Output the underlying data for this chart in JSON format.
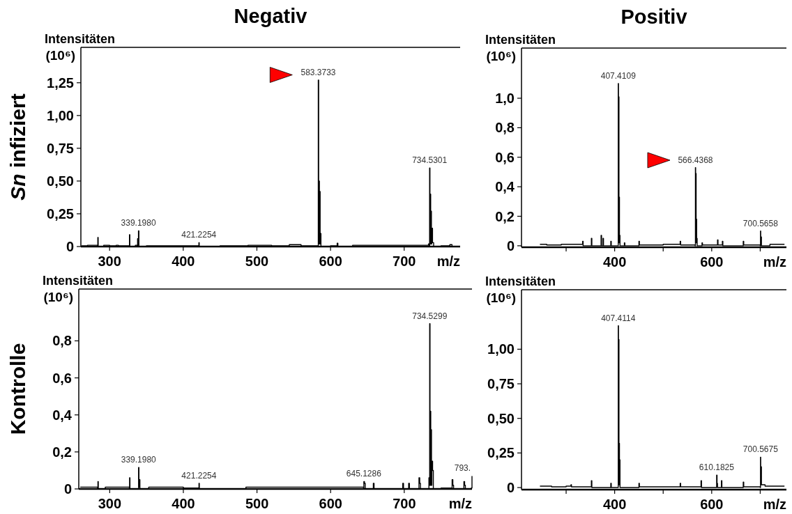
{
  "chart_data": [
    {
      "type": "step",
      "title": "Negativ",
      "xlabel": "m/z",
      "ylabel": "Intensitäten (10⁶)",
      "xlim": [
        261,
        776
      ],
      "xticks": [
        300,
        400,
        500,
        600,
        700
      ],
      "ylim": [
        0,
        1.52
      ],
      "yticks": [
        {
          "value": 0,
          "label": "0"
        },
        {
          "value": 0.25,
          "label": "0,25"
        },
        {
          "value": 0.5,
          "label": "0,50"
        },
        {
          "value": 0.75,
          "label": "0,75"
        },
        {
          "value": 1,
          "label": "1,00"
        },
        {
          "value": 1.25,
          "label": "1,25"
        }
      ],
      "annotations": [
        "Sn infiziert",
        {
          "text": "583.3733",
          "x": 583.37,
          "y": 1.27
        },
        {
          "text": "734.5301",
          "x": 734.53,
          "y": 0.6
        },
        {
          "text": "339.1980",
          "x": 339.2,
          "y": 0.12
        },
        {
          "text": "421.2254",
          "x": 421.23,
          "y": 0.03
        }
      ],
      "series": [
        {
          "color": "#000000",
          "x": [
            262,
            270,
            283.6,
            284,
            284.5,
            292,
            300,
            309,
            312,
            326.7,
            327,
            327.5,
            335,
            337.5,
            338,
            338.5,
            339.2,
            339.8,
            350,
            380,
            420.8,
            421.23,
            421.7,
            450,
            488,
            520,
            544,
            560,
            582.9,
            583.37,
            583.9,
            584.37,
            584.9,
            585.37,
            585.9,
            586.4,
            587,
            600,
            609,
            610,
            630,
            660,
            700,
            719,
            733,
            734,
            734.53,
            735,
            735.5,
            736,
            736.5,
            737,
            737.5,
            738.5,
            740,
            750,
            762,
            765
          ],
          "values": [
            0.005,
            0.01,
            0,
            0.07,
            0,
            0.01,
            0.005,
            0.01,
            0.005,
            0,
            0.09,
            0,
            0.01,
            0,
            0.06,
            0.01,
            0.12,
            0,
            0.005,
            0.005,
            0,
            0.03,
            0,
            0.005,
            0.01,
            0.005,
            0.015,
            0.005,
            0,
            1.27,
            0.02,
            0.5,
            0.02,
            0.42,
            0.02,
            0.1,
            0,
            0.005,
            0.025,
            0,
            0.01,
            0.01,
            0.01,
            0.01,
            0.02,
            0,
            0.6,
            0.02,
            0.4,
            0.02,
            0.27,
            0.02,
            0.14,
            0.03,
            0,
            0.005,
            0.015,
            0.005
          ]
        },
        {
          "type": "scatter",
          "marker": "triangle",
          "color": "#ff0000",
          "x": [
            533
          ],
          "values": [
            1.31
          ]
        }
      ]
    },
    {
      "type": "step",
      "title": "Positiv",
      "xlabel": "m/z",
      "ylabel": "Intensitäten (10⁶)",
      "xlim": [
        208,
        754
      ],
      "xticks": [
        {
          "value": 300,
          "label": null
        },
        400,
        {
          "value": 500,
          "label": null
        },
        600,
        {
          "value": 700,
          "label": null
        }
      ],
      "ylim": [
        -0.01,
        1.34
      ],
      "yticks": [
        {
          "value": 0,
          "label": "0"
        },
        {
          "value": 0.2,
          "label": "0,2"
        },
        {
          "value": 0.4,
          "label": "0,4"
        },
        {
          "value": 0.6,
          "label": "0,6"
        },
        {
          "value": 0.8,
          "label": "0,8"
        },
        {
          "value": 1,
          "label": "1,0"
        }
      ],
      "annotations": [
        {
          "text": "407.4109",
          "x": 407.41,
          "y": 1.1
        },
        {
          "text": "566.4368",
          "x": 566.44,
          "y": 0.53
        },
        {
          "text": "700.5658",
          "x": 700.57,
          "y": 0.1
        }
      ],
      "series": [
        {
          "color": "#000000",
          "x": [
            246,
            260,
            290,
            310,
            334,
            335,
            352,
            353,
            372,
            373,
            376,
            377,
            392,
            393,
            406.9,
            407.41,
            407.9,
            408.41,
            408.9,
            409.41,
            409.9,
            410.4,
            411,
            420,
            421,
            450,
            451,
            500,
            535,
            536,
            565.9,
            566.44,
            566.9,
            567.44,
            567.9,
            568.4,
            569,
            570,
            580,
            581,
            612,
            613,
            622,
            623,
            665,
            666,
            700.1,
            700.57,
            701,
            701.6,
            702.5,
            720,
            750
          ],
          "values": [
            0.01,
            0.005,
            0.01,
            0.01,
            0.03,
            0,
            0.05,
            0,
            0.07,
            0,
            0.05,
            0,
            0.03,
            0,
            0,
            1.1,
            0.02,
            1.01,
            0.02,
            0.33,
            0.02,
            0.07,
            0,
            0.02,
            0,
            0.03,
            0.005,
            0.01,
            0.03,
            0.005,
            0,
            0.53,
            0.02,
            0.49,
            0.02,
            0.18,
            0.05,
            0,
            0.02,
            0.005,
            0.04,
            0.005,
            0.03,
            0,
            0.03,
            0.005,
            0,
            0.1,
            0.02,
            0.06,
            0,
            0.01,
            0.01
          ]
        },
        {
          "type": "scatter",
          "marker": "triangle",
          "color": "#ff0000",
          "x": [
            491
          ],
          "values": [
            0.58
          ]
        }
      ]
    },
    {
      "type": "step",
      "xlabel": "m/z",
      "ylabel": "Intensitäten (10⁶)",
      "xlim": [
        258,
        792
      ],
      "xticks": [
        300,
        400,
        500,
        600,
        700
      ],
      "ylim": [
        0,
        1.08
      ],
      "yticks": [
        {
          "value": 0,
          "label": "0"
        },
        {
          "value": 0.2,
          "label": "0,2"
        },
        {
          "value": 0.4,
          "label": "0,4"
        },
        {
          "value": 0.6,
          "label": "0,6"
        },
        {
          "value": 0.8,
          "label": "0,8"
        }
      ],
      "annotations": [
        "Kontrolle",
        {
          "text": "734.5299",
          "x": 734.53,
          "y": 0.893
        },
        {
          "text": "339.1980",
          "x": 339.2,
          "y": 0.116
        },
        {
          "text": "421.2254",
          "x": 421.23,
          "y": 0.03
        },
        {
          "text": "645.1286",
          "x": 645.13,
          "y": 0.04
        },
        {
          "text": "793.",
          "x": 792,
          "y": 0.07
        }
      ],
      "series": [
        {
          "color": "#000000",
          "x": [
            260,
            283.6,
            284,
            284.5,
            294,
            310,
            326.7,
            327,
            327.5,
            338.7,
            339.2,
            339.7,
            340.2,
            341,
            353,
            400,
            420.8,
            421.23,
            421.7,
            485,
            543,
            575,
            644.7,
            645.13,
            646,
            647,
            658,
            659,
            698,
            699,
            706,
            707,
            720,
            721,
            722,
            733.5,
            734,
            734.53,
            735,
            735.5,
            736,
            736.5,
            737,
            737.5,
            738.5,
            739.5,
            750,
            764.5,
            765,
            766,
            767,
            780.5,
            781,
            782,
            783,
            791,
            792
          ],
          "values": [
            0.01,
            0,
            0.04,
            0,
            0.01,
            0.01,
            0,
            0.06,
            0,
            0,
            0.116,
            0.01,
            0.05,
            0,
            0.01,
            0.005,
            0,
            0.03,
            0,
            0.01,
            0.01,
            0.01,
            0,
            0.04,
            0.03,
            0,
            0.03,
            0,
            0.03,
            0,
            0.03,
            0,
            0.06,
            0.03,
            0,
            0.06,
            0.02,
            0.893,
            0.02,
            0.42,
            0.02,
            0.32,
            0.02,
            0.15,
            0.1,
            0,
            0.005,
            0,
            0.05,
            0.02,
            0,
            0,
            0.04,
            0.02,
            0,
            0.005,
            0.07
          ]
        }
      ]
    },
    {
      "type": "step",
      "xlabel": "m/z",
      "ylabel": "Intensitäten (10⁶)",
      "xlim": [
        208,
        754
      ],
      "xticks": [
        {
          "value": 300,
          "label": null
        },
        400,
        {
          "value": 500,
          "label": null
        },
        600,
        {
          "value": 700,
          "label": null
        }
      ],
      "ylim": [
        -0.015,
        1.43
      ],
      "yticks": [
        {
          "value": 0,
          "label": "0"
        },
        {
          "value": 0.25,
          "label": "0,25"
        },
        {
          "value": 0.5,
          "label": "0,50"
        },
        {
          "value": 0.75,
          "label": "0,75"
        },
        {
          "value": 1,
          "label": "1,00"
        }
      ],
      "annotations": [
        {
          "text": "407.4114",
          "x": 407.41,
          "y": 1.17
        },
        {
          "text": "610.1825",
          "x": 610.18,
          "y": 0.09
        },
        {
          "text": "700.5675",
          "x": 700.57,
          "y": 0.22
        }
      ],
      "series": [
        {
          "color": "#000000",
          "x": [
            246,
            270,
            300,
            310,
            311,
            352,
            353,
            392,
            393,
            406.9,
            407.41,
            407.9,
            408.41,
            408.9,
            409.41,
            409.9,
            410.4,
            411,
            450,
            451,
            535,
            536,
            578,
            579,
            609.7,
            610.18,
            611,
            612,
            620,
            621,
            665,
            666,
            700.1,
            700.57,
            701,
            701.6,
            702.5,
            710,
            750
          ],
          "values": [
            0.01,
            0.005,
            0.01,
            0.02,
            0.005,
            0.05,
            0,
            0.03,
            0,
            0,
            1.17,
            0.02,
            1.07,
            0.02,
            0.32,
            0.02,
            0.2,
            0,
            0.03,
            0.005,
            0.03,
            0.005,
            0.05,
            0,
            0,
            0.09,
            0.03,
            0,
            0.05,
            0,
            0.04,
            0.005,
            0,
            0.22,
            0.02,
            0.15,
            0.02,
            0.01,
            0.01
          ]
        }
      ]
    }
  ]
}
